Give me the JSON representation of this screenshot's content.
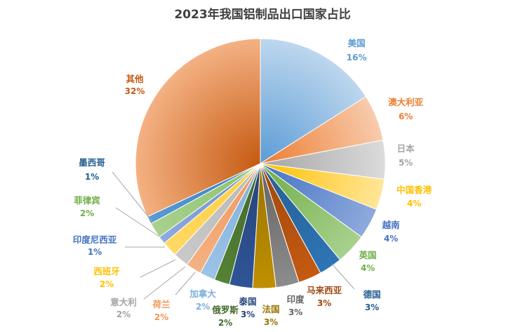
{
  "chart_data": {
    "type": "pie",
    "title": "2023年我国铝制品出口国家占比",
    "unit": "%",
    "slices": [
      {
        "label": "美国",
        "value": 16,
        "value_label": "16%",
        "color": "#5b9bd5",
        "color_light": "#bdd7ee",
        "text_color": "#5b9bd5"
      },
      {
        "label": "澳大利亚",
        "value": 6,
        "value_label": "6%",
        "color": "#ed7d31",
        "color_light": "#f8cbad",
        "text_color": "#ed7d31"
      },
      {
        "label": "日本",
        "value": 5,
        "value_label": "5%",
        "color": "#a5a5a5",
        "color_light": "#dbdbdb",
        "text_color": "#a5a5a5"
      },
      {
        "label": "中国香港",
        "value": 4,
        "value_label": "4%",
        "color": "#ffc000",
        "color_light": "#ffe699",
        "text_color": "#ffc000"
      },
      {
        "label": "越南",
        "value": 4,
        "value_label": "4%",
        "color": "#4472c4",
        "color_light": "#8faadc",
        "text_color": "#4472c4"
      },
      {
        "label": "英国",
        "value": 4,
        "value_label": "4%",
        "color": "#70ad47",
        "color_light": "#a9d18e",
        "text_color": "#70ad47"
      },
      {
        "label": "德国",
        "value": 3,
        "value_label": "3%",
        "color": "#255e91",
        "color_light": "#2e75b6",
        "text_color": "#255e91"
      },
      {
        "label": "马来西亚",
        "value": 3,
        "value_label": "3%",
        "color": "#9e480e",
        "color_light": "#c55a11",
        "text_color": "#9e480e"
      },
      {
        "label": "印度",
        "value": 3,
        "value_label": "3%",
        "color": "#636363",
        "color_light": "#8c8c8c",
        "text_color": "#636363"
      },
      {
        "label": "法国",
        "value": 3,
        "value_label": "3%",
        "color": "#997300",
        "color_light": "#bf9000",
        "text_color": "#997300"
      },
      {
        "label": "泰国",
        "value": 3,
        "value_label": "3%",
        "color": "#264478",
        "color_light": "#2f5597",
        "text_color": "#264478"
      },
      {
        "label": "俄罗斯",
        "value": 2,
        "value_label": "2%",
        "color": "#43682b",
        "color_light": "#548235",
        "text_color": "#43682b"
      },
      {
        "label": "加拿大",
        "value": 2,
        "value_label": "2%",
        "color": "#7cafdd",
        "color_light": "#9dc3e6",
        "text_color": "#7cafdd"
      },
      {
        "label": "荷兰",
        "value": 2,
        "value_label": "2%",
        "color": "#f1975a",
        "color_light": "#f4b183",
        "text_color": "#f1975a"
      },
      {
        "label": "意大利",
        "value": 2,
        "value_label": "2%",
        "color": "#b7b7b7",
        "color_light": "#c9c9c9",
        "text_color": "#a5a5a5"
      },
      {
        "label": "西班牙",
        "value": 2,
        "value_label": "2%",
        "color": "#ffcd33",
        "color_light": "#ffd966",
        "text_color": "#ffc000"
      },
      {
        "label": "印度尼西亚",
        "value": 1,
        "value_label": "1%",
        "color": "#698ed0",
        "color_light": "#8faadc",
        "text_color": "#4472c4"
      },
      {
        "label": "菲律宾",
        "value": 2,
        "value_label": "2%",
        "color": "#8cc168",
        "color_light": "#a9d18e",
        "text_color": "#70ad47"
      },
      {
        "label": "墨西哥",
        "value": 1,
        "value_label": "1%",
        "color": "#327dc2",
        "color_light": "#5b9bd5",
        "text_color": "#255e91"
      },
      {
        "label": "其他",
        "value": 32,
        "value_label": "32%",
        "color": "#c55a11",
        "color_light": "#f4b183",
        "text_color": "#c55a11"
      }
    ],
    "label_position": "outside",
    "legend": "none"
  }
}
